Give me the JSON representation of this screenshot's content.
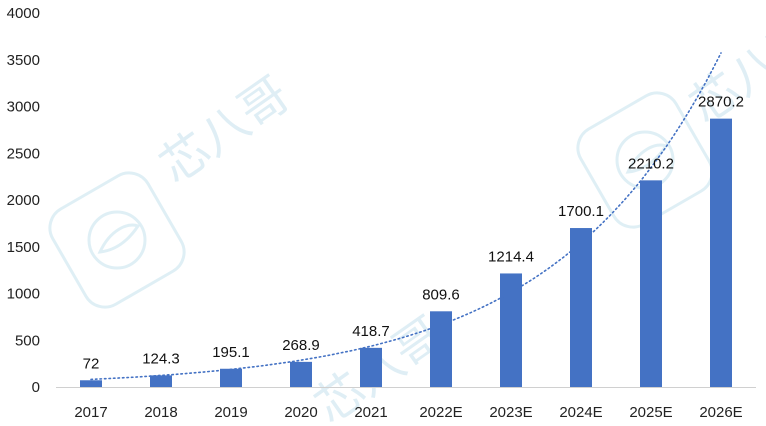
{
  "watermark": {
    "text": "芯八哥"
  },
  "chart_data": {
    "type": "bar",
    "categories": [
      "2017",
      "2018",
      "2019",
      "2020",
      "2021",
      "2022E",
      "2023E",
      "2024E",
      "2025E",
      "2026E"
    ],
    "values": [
      72,
      124.3,
      195.1,
      268.9,
      418.7,
      809.6,
      1214.4,
      1700.1,
      2210.2,
      2870.2
    ],
    "data_labels": [
      "72",
      "124.3",
      "195.1",
      "268.9",
      "418.7",
      "809.6",
      "1214.4",
      "1700.1",
      "2210.2",
      "2870.2"
    ],
    "y_ticks": [
      0,
      500,
      1000,
      1500,
      2000,
      2500,
      3000,
      3500,
      4000
    ],
    "ylim": [
      0,
      4000
    ],
    "title": "",
    "xlabel": "",
    "ylabel": "",
    "trendline": {
      "type": "exponential",
      "style": "dotted"
    },
    "grid": false,
    "legend": "none",
    "colors": {
      "bar": "#4472C4",
      "trendline": "#4472C4",
      "watermark": "#d9ecf3"
    }
  }
}
